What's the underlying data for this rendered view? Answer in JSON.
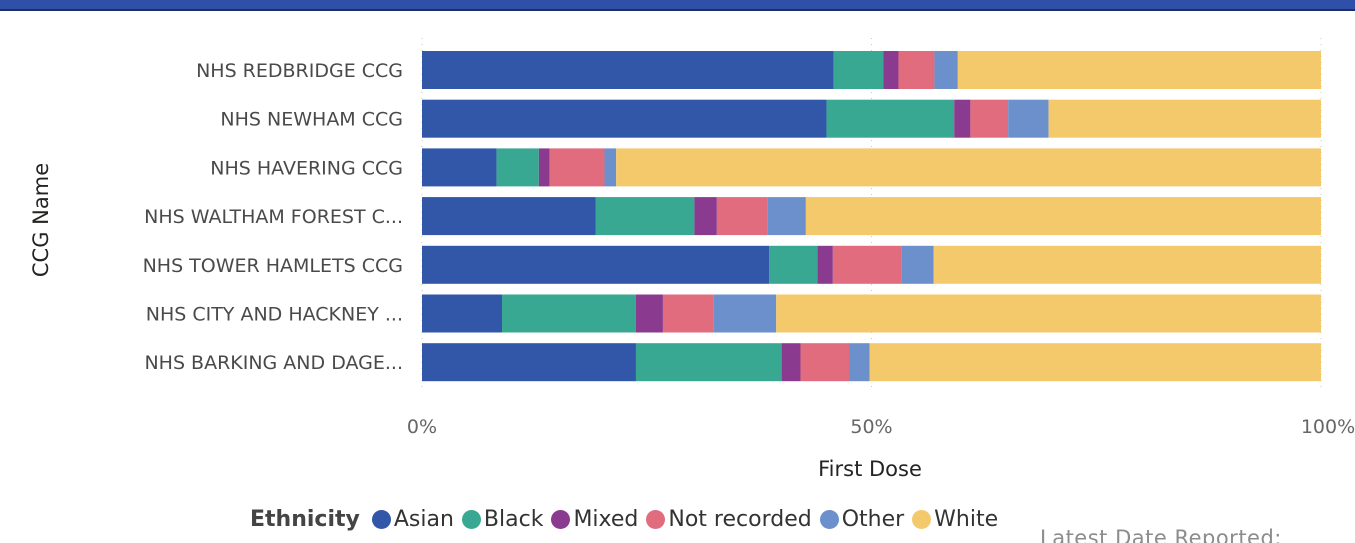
{
  "chart_data": {
    "type": "bar",
    "orientation": "horizontal",
    "stacked": "100%",
    "xlabel": "First Dose",
    "ylabel": "CCG Name",
    "xlim": [
      0,
      100
    ],
    "x_ticks": [
      "0%",
      "50%",
      "100%"
    ],
    "grid": "vertical dotted",
    "legend_title": "Ethnicity",
    "legend_position": "bottom",
    "categories": [
      "NHS REDBRIDGE CCG",
      "NHS NEWHAM CCG",
      "NHS HAVERING CCG",
      "NHS WALTHAM FOREST C...",
      "NHS TOWER HAMLETS CCG",
      "NHS CITY AND HACKNEY ...",
      "NHS BARKING AND DAGE..."
    ],
    "series": [
      {
        "name": "Asian",
        "color": "#3257a8",
        "values": [
          45.8,
          45.0,
          8.3,
          19.3,
          38.6,
          8.9,
          23.8
        ]
      },
      {
        "name": "Black",
        "color": "#39a892",
        "values": [
          5.5,
          14.2,
          4.7,
          11.0,
          5.4,
          14.9,
          16.2
        ]
      },
      {
        "name": "Mixed",
        "color": "#8a3b8f",
        "values": [
          1.7,
          1.8,
          1.2,
          2.5,
          1.7,
          3.0,
          2.1
        ]
      },
      {
        "name": "Not recorded",
        "color": "#e06c7e",
        "values": [
          4.0,
          4.2,
          6.1,
          5.6,
          7.6,
          5.6,
          5.4
        ]
      },
      {
        "name": "Other",
        "color": "#6b90cb",
        "values": [
          2.6,
          4.5,
          1.3,
          4.3,
          3.6,
          7.0,
          2.3
        ]
      },
      {
        "name": "White",
        "color": "#f4c96b",
        "values": [
          40.4,
          30.3,
          78.4,
          57.3,
          43.1,
          60.6,
          50.2
        ]
      }
    ]
  },
  "overlay": {
    "latest_date_label": "Latest Date Reported:"
  }
}
